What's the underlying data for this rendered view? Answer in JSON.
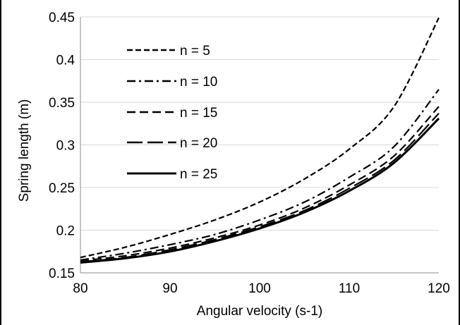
{
  "chart_data": {
    "type": "line",
    "xlabel": "Angular velocity (s-1)",
    "ylabel": "Spring length (m)",
    "xlim": [
      80,
      120
    ],
    "ylim": [
      0.15,
      0.45
    ],
    "xticks": [
      "80",
      "90",
      "100",
      "110",
      "120"
    ],
    "yticks": [
      "0.15",
      "0.2",
      "0.25",
      "0.3",
      "0.35",
      "0.4",
      "0.45"
    ],
    "grid": "horizontal",
    "legend_position": "top-left",
    "x": [
      80,
      85,
      90,
      95,
      100,
      105,
      110,
      115,
      120
    ],
    "series": [
      {
        "name": "n = 5",
        "dash": "short-dash",
        "values": [
          0.168,
          0.18,
          0.195,
          0.212,
          0.233,
          0.26,
          0.295,
          0.345,
          0.449
        ]
      },
      {
        "name": "n = 10",
        "dash": "dash-dot",
        "values": [
          0.165,
          0.173,
          0.183,
          0.195,
          0.212,
          0.233,
          0.262,
          0.298,
          0.365
        ]
      },
      {
        "name": "n = 15",
        "dash": "medium-dash",
        "values": [
          0.164,
          0.17,
          0.179,
          0.191,
          0.206,
          0.226,
          0.253,
          0.287,
          0.345
        ]
      },
      {
        "name": "n = 20",
        "dash": "long-dash",
        "values": [
          0.163,
          0.168,
          0.177,
          0.189,
          0.204,
          0.223,
          0.249,
          0.282,
          0.337
        ]
      },
      {
        "name": "n = 25",
        "dash": "solid",
        "values": [
          0.162,
          0.167,
          0.175,
          0.187,
          0.202,
          0.221,
          0.246,
          0.279,
          0.331
        ]
      }
    ],
    "colors": {
      "line": "#000000",
      "grid": "#d9d9d9",
      "background": "#ffffff"
    }
  }
}
